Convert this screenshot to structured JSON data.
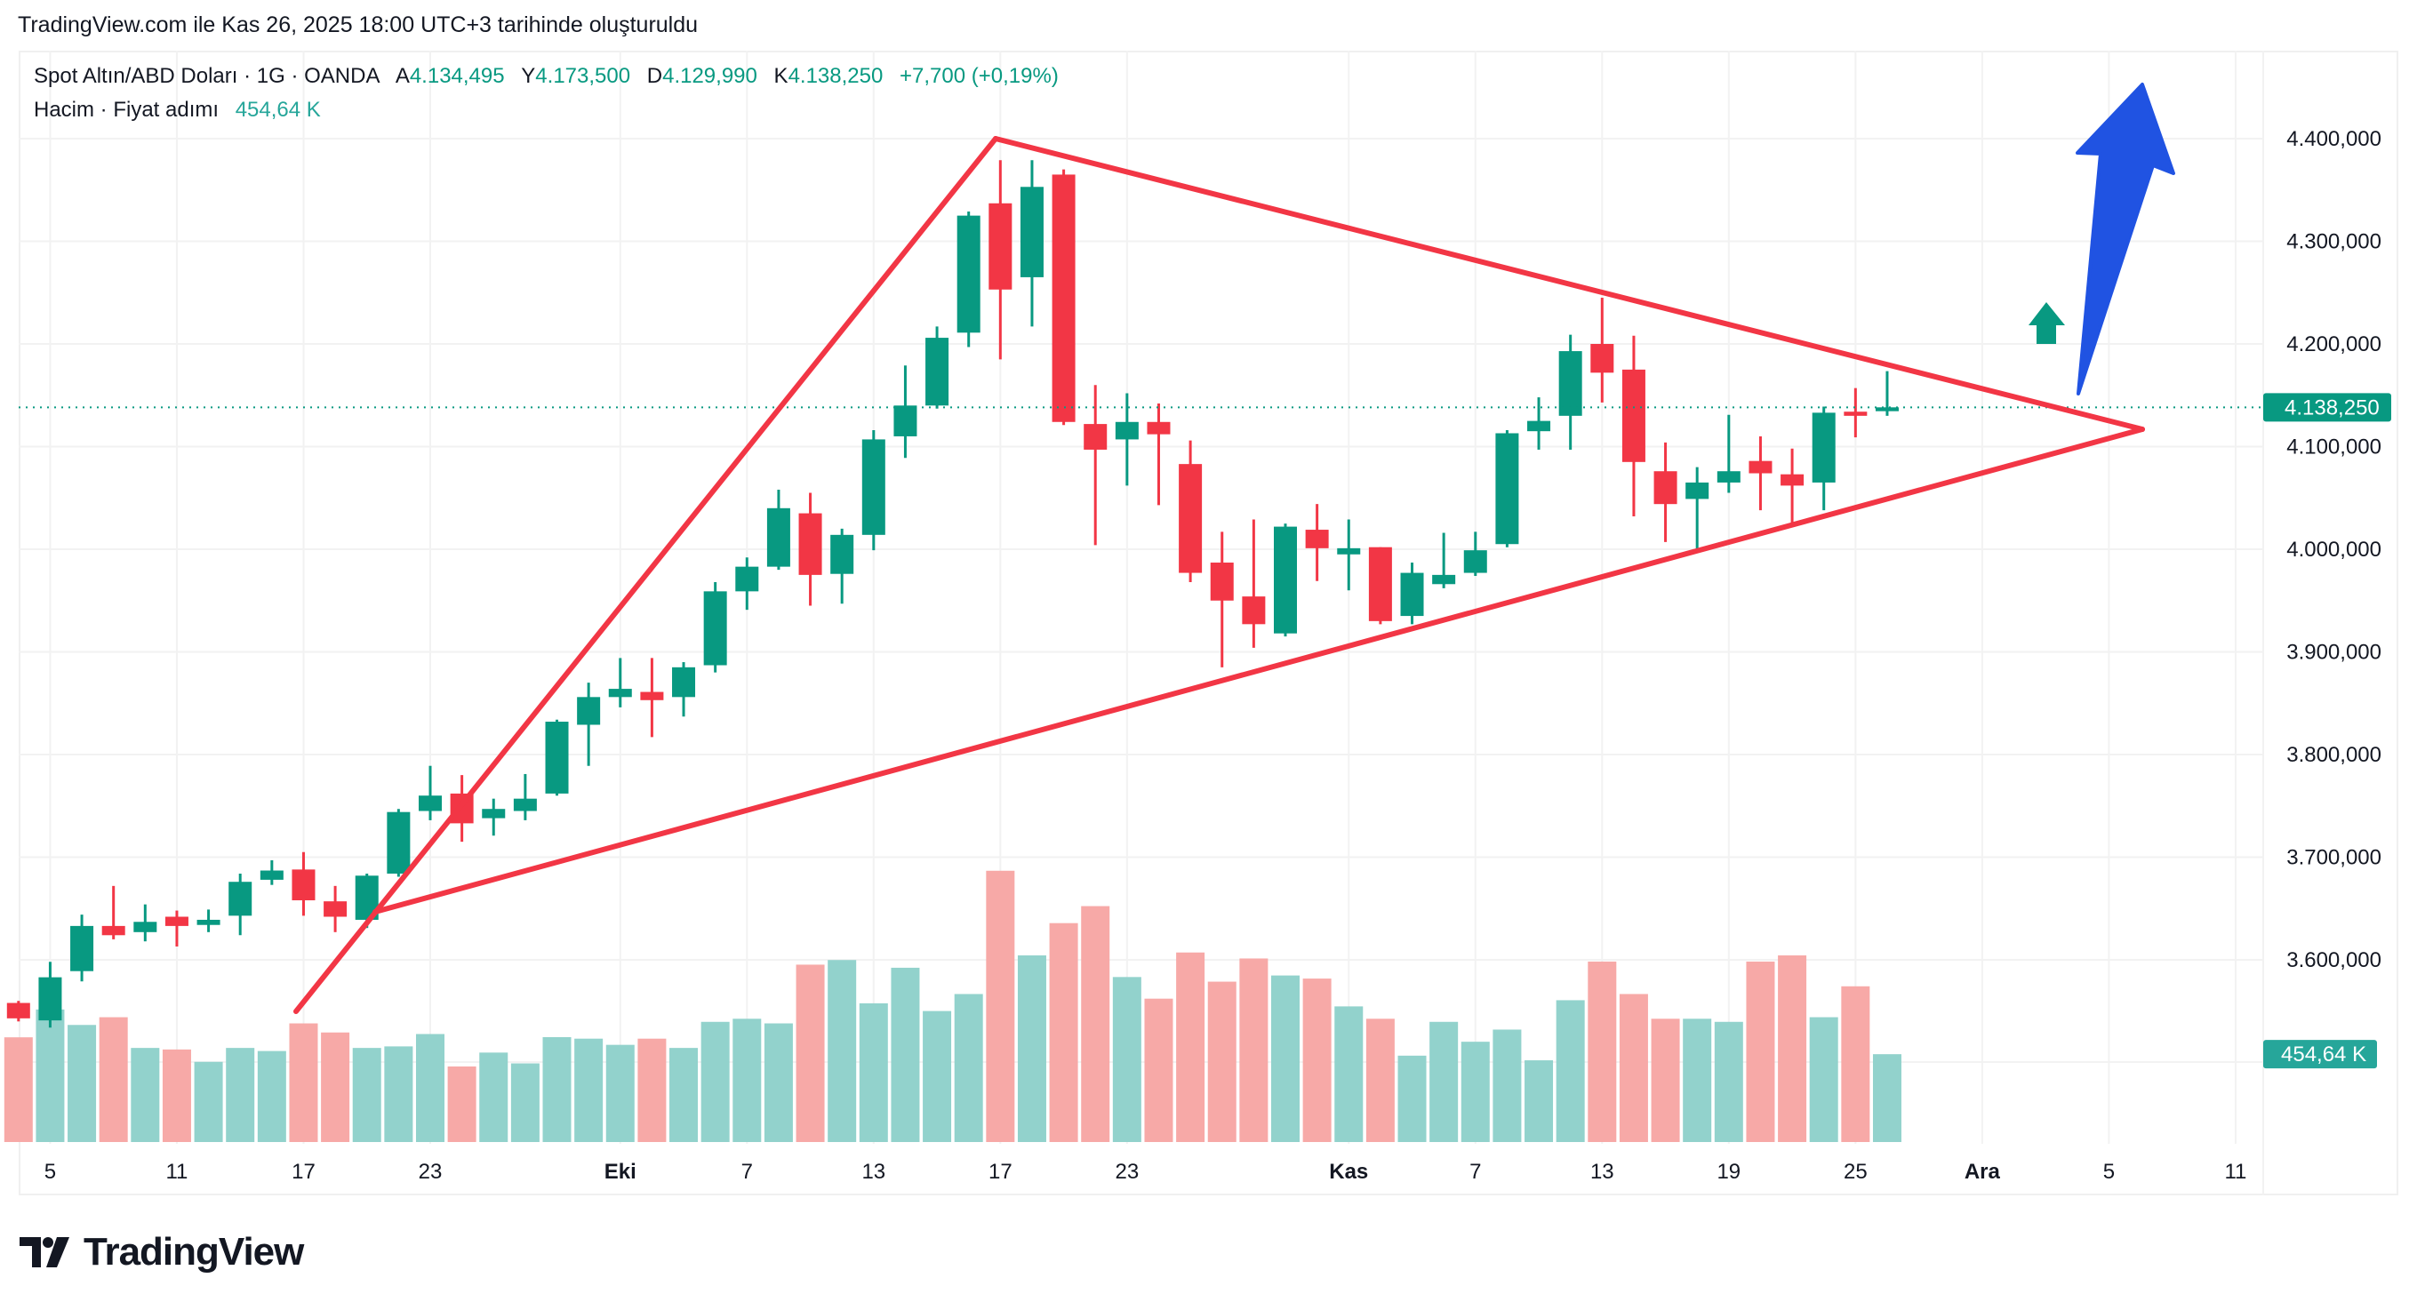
{
  "caption": "TradingView.com ile Kas 26, 2025 18:00 UTC+3 tarihinde oluşturuldu",
  "legend": {
    "symbol": "Spot Altın/ABD Doları · 1G · OANDA",
    "open_label": "A",
    "open": "4.134,495",
    "high_label": "Y",
    "high": "4.173,500",
    "low_label": "D",
    "low": "4.129,990",
    "close_label": "K",
    "close": "4.138,250",
    "change": "+7,700 (+0,19%)",
    "volume_title": "Hacim · Fiyat adımı",
    "volume_value": "454,64 K"
  },
  "logo_text": "TradingView",
  "colors": {
    "up": "#089981",
    "down": "#F23645",
    "vol_up": "#92D2CC",
    "vol_down": "#F7A9A7",
    "trend": "#F23645",
    "arrow_blue": "#2053E2",
    "grid": "#F2F2F2"
  },
  "chart_data": {
    "type": "candlestick",
    "title": "Spot Altın/ABD Doları · 1G · OANDA",
    "ylim": [
      3400,
      4500
    ],
    "y_ticks": [
      {
        "value": 4400,
        "label": "4.400,000"
      },
      {
        "value": 4300,
        "label": "4.300,000"
      },
      {
        "value": 4200,
        "label": "4.200,000"
      },
      {
        "value": 4100,
        "label": "4.100,000"
      },
      {
        "value": 4000,
        "label": "4.000,000"
      },
      {
        "value": 3900,
        "label": "3.900,000"
      },
      {
        "value": 3800,
        "label": "3.800,000"
      },
      {
        "value": 3700,
        "label": "3.700,000"
      },
      {
        "value": 3600,
        "label": "3.600,000"
      }
    ],
    "x_ticks": [
      {
        "bar": 1,
        "label": "5",
        "bold": false
      },
      {
        "bar": 5,
        "label": "11",
        "bold": false
      },
      {
        "bar": 9,
        "label": "17",
        "bold": false
      },
      {
        "bar": 13,
        "label": "23",
        "bold": false
      },
      {
        "bar": 19,
        "label": "Eki",
        "bold": true
      },
      {
        "bar": 23,
        "label": "7",
        "bold": false
      },
      {
        "bar": 27,
        "label": "13",
        "bold": false
      },
      {
        "bar": 31,
        "label": "17",
        "bold": false
      },
      {
        "bar": 35,
        "label": "23",
        "bold": false
      },
      {
        "bar": 42,
        "label": "Kas",
        "bold": true
      },
      {
        "bar": 46,
        "label": "7",
        "bold": false
      },
      {
        "bar": 50,
        "label": "13",
        "bold": false
      },
      {
        "bar": 54,
        "label": "19",
        "bold": false
      },
      {
        "bar": 58,
        "label": "25",
        "bold": false
      },
      {
        "bar": 62,
        "label": "Ara",
        "bold": true
      },
      {
        "bar": 66,
        "label": "5",
        "bold": false
      },
      {
        "bar": 70,
        "label": "11",
        "bold": false
      }
    ],
    "candles_ohlcv_k": [
      [
        3558,
        3560,
        3540,
        3543,
        542
      ],
      [
        3541,
        3598,
        3534,
        3583,
        686
      ],
      [
        3589,
        3644,
        3579,
        3633,
        606
      ],
      [
        3633,
        3672,
        3620,
        3624,
        646
      ],
      [
        3627,
        3654,
        3618,
        3637,
        487
      ],
      [
        3642,
        3648,
        3613,
        3633,
        479
      ],
      [
        3634,
        3649,
        3627,
        3639,
        415
      ],
      [
        3643,
        3684,
        3624,
        3676,
        487
      ],
      [
        3678,
        3697,
        3673,
        3687,
        471
      ],
      [
        3688,
        3705,
        3643,
        3658,
        614
      ],
      [
        3657,
        3672,
        3627,
        3642,
        567
      ],
      [
        3639,
        3684,
        3631,
        3682,
        487
      ],
      [
        3684,
        3747,
        3681,
        3744,
        495
      ],
      [
        3745,
        3789,
        3736,
        3760,
        559
      ],
      [
        3762,
        3780,
        3715,
        3733,
        391
      ],
      [
        3738,
        3757,
        3721,
        3747,
        463
      ],
      [
        3745,
        3781,
        3736,
        3757,
        407
      ],
      [
        3762,
        3834,
        3760,
        3832,
        543
      ],
      [
        3829,
        3870,
        3789,
        3856,
        535
      ],
      [
        3856,
        3894,
        3846,
        3864,
        503
      ],
      [
        3861,
        3894,
        3817,
        3853,
        535
      ],
      [
        3856,
        3890,
        3837,
        3885,
        487
      ],
      [
        3887,
        3968,
        3880,
        3959,
        622
      ],
      [
        3959,
        3992,
        3941,
        3983,
        638
      ],
      [
        3983,
        4058,
        3980,
        4040,
        614
      ],
      [
        4035,
        4055,
        3945,
        3975,
        918
      ],
      [
        3976,
        4020,
        3947,
        4014,
        942
      ],
      [
        4014,
        4116,
        3999,
        4107,
        718
      ],
      [
        4110,
        4179,
        4089,
        4140,
        902
      ],
      [
        4140,
        4217,
        4137,
        4206,
        678
      ],
      [
        4211,
        4329,
        4197,
        4325,
        766
      ],
      [
        4337,
        4379,
        4185,
        4253,
        1404
      ],
      [
        4265,
        4379,
        4217,
        4353,
        966
      ],
      [
        4365,
        4370,
        4121,
        4124,
        1133
      ],
      [
        4122,
        4160,
        4004,
        4097,
        1221
      ],
      [
        4107,
        4152,
        4062,
        4124,
        854
      ],
      [
        4124,
        4142,
        4043,
        4112,
        742
      ],
      [
        4083,
        4106,
        3968,
        3977,
        981
      ],
      [
        3987,
        4017,
        3885,
        3950,
        830
      ],
      [
        3954,
        4029,
        3904,
        3927,
        950
      ],
      [
        3918,
        4025,
        3915,
        4022,
        862
      ],
      [
        4019,
        4044,
        3969,
        4001,
        846
      ],
      [
        3995,
        4029,
        3960,
        4001,
        702
      ],
      [
        4002,
        4002,
        3927,
        3930,
        638
      ],
      [
        3935,
        3987,
        3927,
        3977,
        447
      ],
      [
        3966,
        4016,
        3962,
        3975,
        622
      ],
      [
        3977,
        4017,
        3974,
        3999,
        519
      ],
      [
        4005,
        4116,
        4002,
        4113,
        582
      ],
      [
        4115,
        4148,
        4097,
        4125,
        423
      ],
      [
        4130,
        4209,
        4097,
        4193,
        734
      ],
      [
        4200,
        4245,
        4143,
        4172,
        934
      ],
      [
        4175,
        4208,
        4032,
        4085,
        766
      ],
      [
        4076,
        4104,
        4007,
        4044,
        638
      ],
      [
        4049,
        4080,
        3998,
        4065,
        638
      ],
      [
        4065,
        4131,
        4055,
        4076,
        622
      ],
      [
        4086,
        4110,
        4038,
        4074,
        934
      ],
      [
        4073,
        4098,
        4025,
        4062,
        966
      ],
      [
        4065,
        4139,
        4038,
        4133,
        646
      ],
      [
        4134,
        4157,
        4109,
        4130,
        806
      ],
      [
        4134.495,
        4173.5,
        4129.99,
        4138.25,
        454.64
      ]
    ],
    "last_price": {
      "value": 4138.25,
      "label": "4.138,250"
    },
    "last_volume": {
      "value": 454.64,
      "label": "454,64 K"
    }
  }
}
